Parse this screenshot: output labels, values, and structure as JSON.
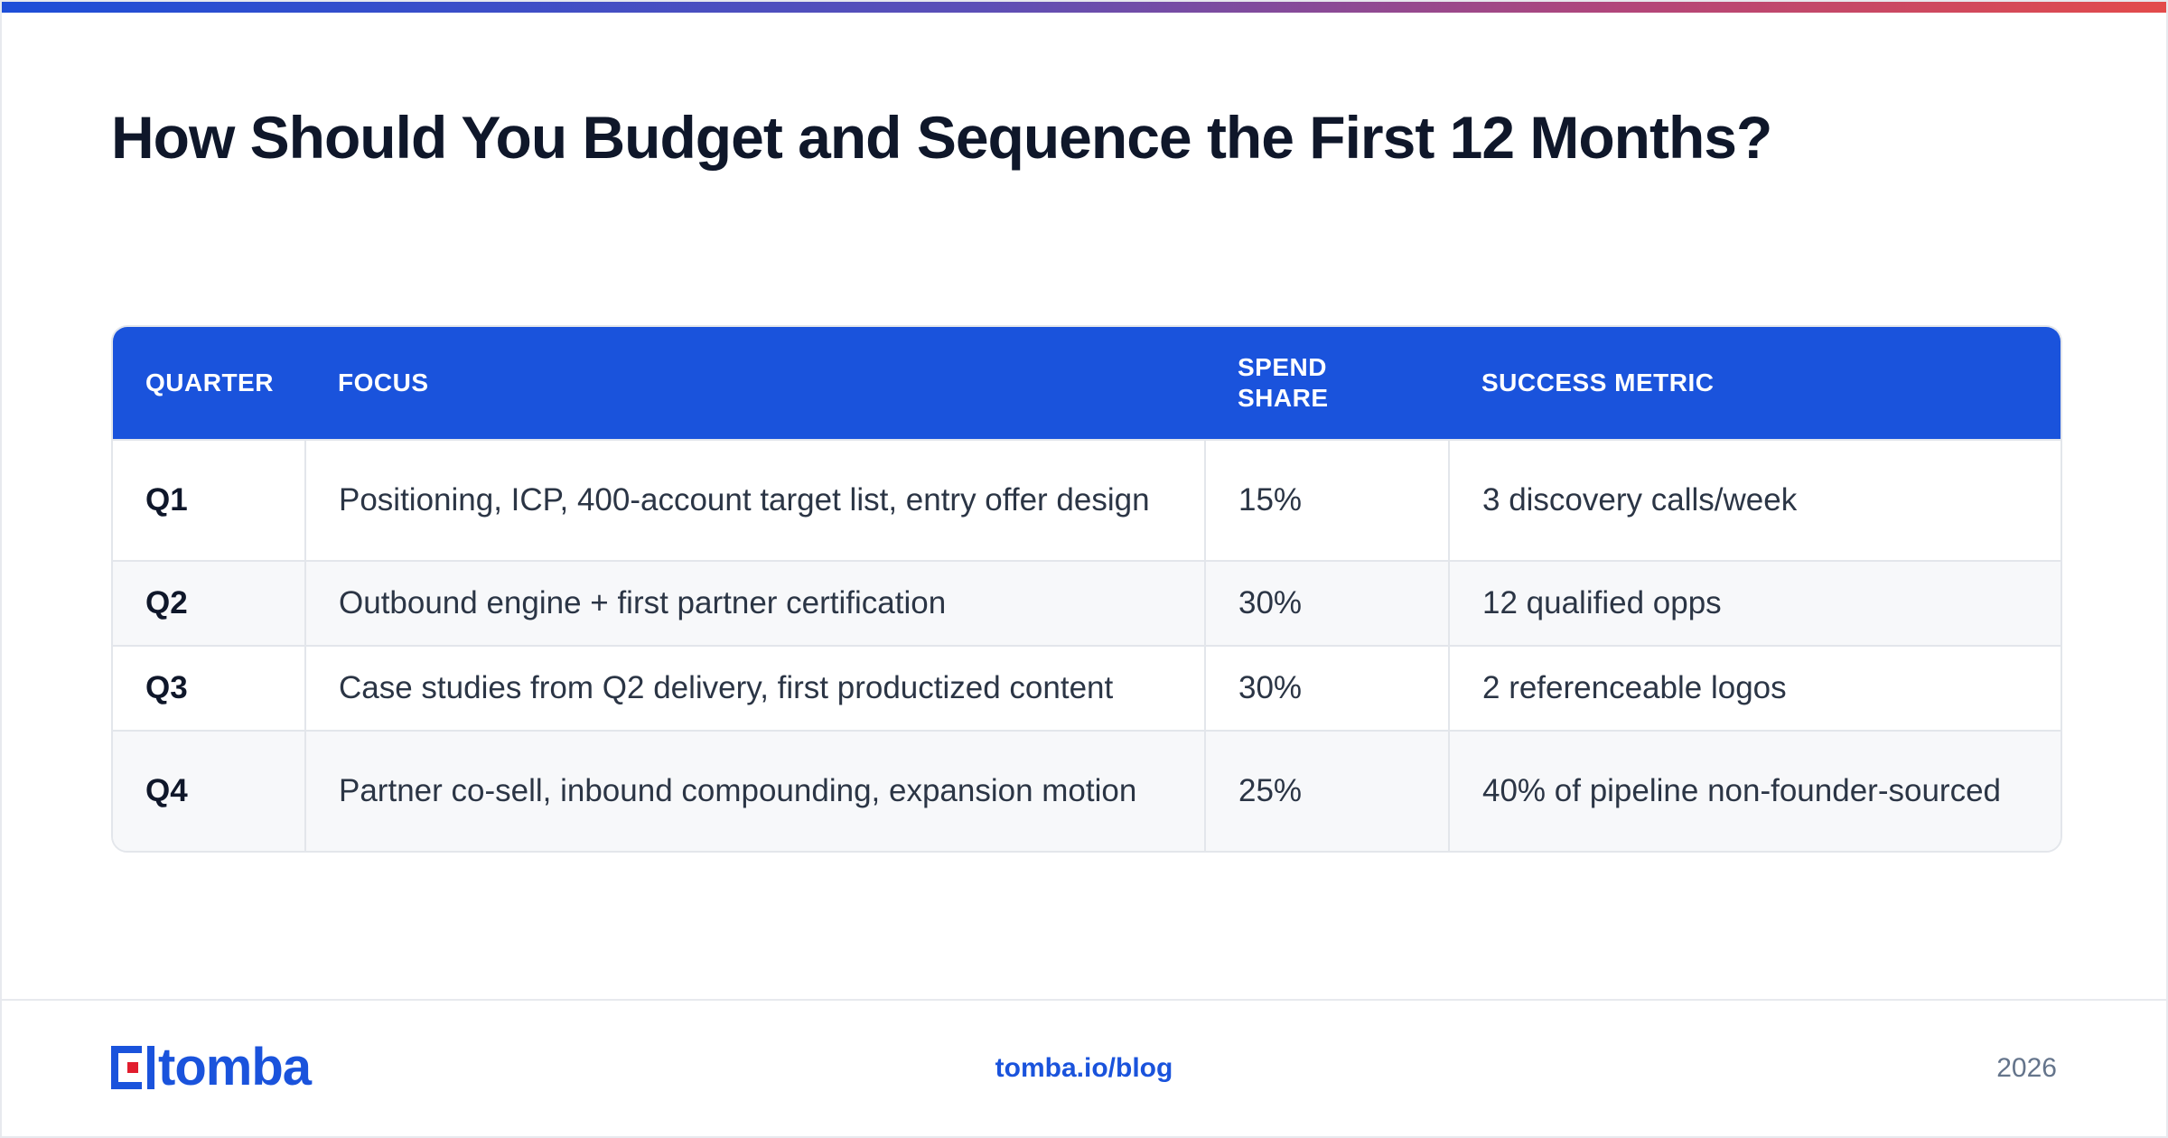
{
  "title": "How Should You Budget and Sequence the First 12 Months?",
  "table": {
    "headers": {
      "quarter": "QUARTER",
      "focus": "FOCUS",
      "spend_share": "SPEND SHARE",
      "success_metric": "SUCCESS METRIC"
    },
    "rows": [
      {
        "quarter": "Q1",
        "focus": "Positioning, ICP, 400-account target list, entry offer design",
        "spend_share": "15%",
        "success_metric": "3 discovery calls/week"
      },
      {
        "quarter": "Q2",
        "focus": "Outbound engine + first partner certification",
        "spend_share": "30%",
        "success_metric": "12 qualified opps"
      },
      {
        "quarter": "Q3",
        "focus": "Case studies from Q2 delivery, first productized content",
        "spend_share": "30%",
        "success_metric": "2 referenceable logos"
      },
      {
        "quarter": "Q4",
        "focus": "Partner co-sell, inbound compounding, expansion motion",
        "spend_share": "25%",
        "success_metric": "40% of pipeline non-founder-sourced"
      }
    ]
  },
  "footer": {
    "logo_text": "tomba",
    "url": "tomba.io/blog",
    "year": "2026"
  },
  "colors": {
    "accent": "#1a53dc",
    "logo_red": "#e11d2e",
    "heading": "#0f172a"
  }
}
